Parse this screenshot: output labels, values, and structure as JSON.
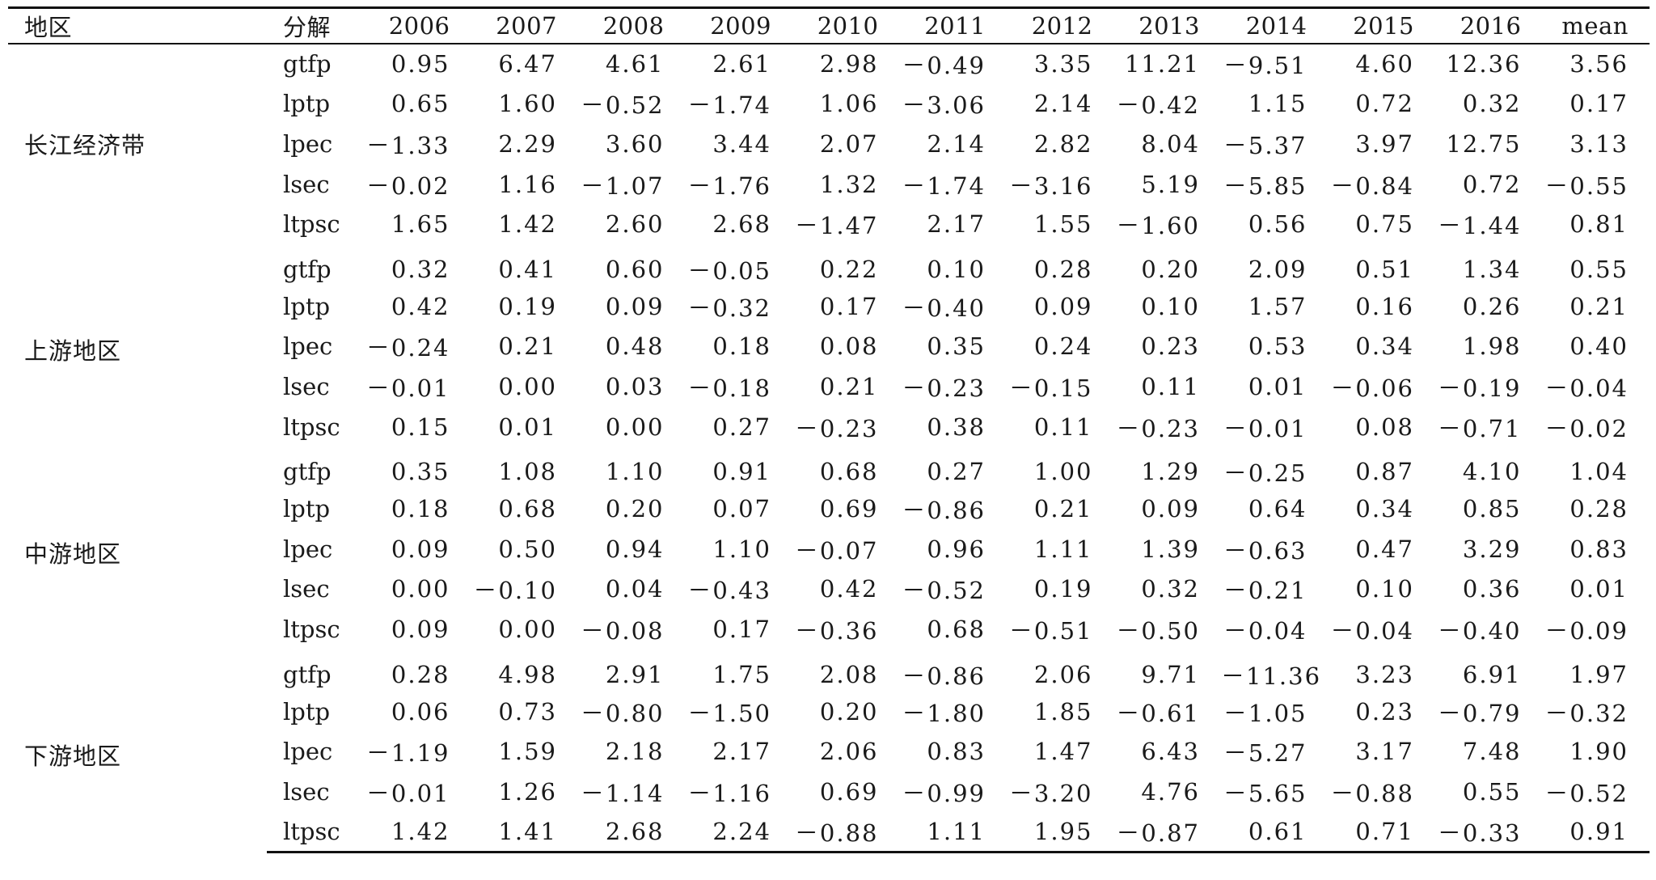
{
  "headers": [
    "地区",
    "分解",
    "2006",
    "2007",
    "2008",
    "2009",
    "2010",
    "2011",
    "2012",
    "2013",
    "2014",
    "2015",
    "2016",
    "mean"
  ],
  "groups": [
    {
      "region": "长江经济带",
      "rows": [
        {
          "d": "gtfp",
          "v": [
            "0.95",
            "6.47",
            "4.61",
            "2.61",
            "2.98",
            "－0.49",
            "3.35",
            "11.21",
            "－9.51",
            "4.60",
            "12.36",
            "3.56"
          ]
        },
        {
          "d": "lptp",
          "v": [
            "0.65",
            "1.60",
            "－0.52",
            "－1.74",
            "1.06",
            "－3.06",
            "2.14",
            "－0.42",
            "1.15",
            "0.72",
            "0.32",
            "0.17"
          ]
        },
        {
          "d": "lpec",
          "v": [
            "－1.33",
            "2.29",
            "3.60",
            "3.44",
            "2.07",
            "2.14",
            "2.82",
            "8.04",
            "－5.37",
            "3.97",
            "12.75",
            "3.13"
          ]
        },
        {
          "d": "lsec",
          "v": [
            "－0.02",
            "1.16",
            "－1.07",
            "－1.76",
            "1.32",
            "－1.74",
            "－3.16",
            "5.19",
            "－5.85",
            "－0.84",
            "0.72",
            "－0.55"
          ]
        },
        {
          "d": "ltpsc",
          "v": [
            "1.65",
            "1.42",
            "2.60",
            "2.68",
            "－1.47",
            "2.17",
            "1.55",
            "－1.60",
            "0.56",
            "0.75",
            "－1.44",
            "0.81"
          ]
        }
      ]
    },
    {
      "region": "上游地区",
      "rows": [
        {
          "d": "gtfp",
          "v": [
            "0.32",
            "0.41",
            "0.60",
            "－0.05",
            "0.22",
            "0.10",
            "0.28",
            "0.20",
            "2.09",
            "0.51",
            "1.34",
            "0.55"
          ]
        },
        {
          "d": "lptp",
          "v": [
            "0.42",
            "0.19",
            "0.09",
            "－0.32",
            "0.17",
            "－0.40",
            "0.09",
            "0.10",
            "1.57",
            "0.16",
            "0.26",
            "0.21"
          ]
        },
        {
          "d": "lpec",
          "v": [
            "－0.24",
            "0.21",
            "0.48",
            "0.18",
            "0.08",
            "0.35",
            "0.24",
            "0.23",
            "0.53",
            "0.34",
            "1.98",
            "0.40"
          ]
        },
        {
          "d": "lsec",
          "v": [
            "－0.01",
            "0.00",
            "0.03",
            "－0.18",
            "0.21",
            "－0.23",
            "－0.15",
            "0.11",
            "0.01",
            "－0.06",
            "－0.19",
            "－0.04"
          ]
        },
        {
          "d": "ltpsc",
          "v": [
            "0.15",
            "0.01",
            "0.00",
            "0.27",
            "－0.23",
            "0.38",
            "0.11",
            "－0.23",
            "－0.01",
            "0.08",
            "－0.71",
            "－0.02"
          ]
        }
      ]
    },
    {
      "region": "中游地区",
      "rows": [
        {
          "d": "gtfp",
          "v": [
            "0.35",
            "1.08",
            "1.10",
            "0.91",
            "0.68",
            "0.27",
            "1.00",
            "1.29",
            "－0.25",
            "0.87",
            "4.10",
            "1.04"
          ]
        },
        {
          "d": "lptp",
          "v": [
            "0.18",
            "0.68",
            "0.20",
            "0.07",
            "0.69",
            "－0.86",
            "0.21",
            "0.09",
            "0.64",
            "0.34",
            "0.85",
            "0.28"
          ]
        },
        {
          "d": "lpec",
          "v": [
            "0.09",
            "0.50",
            "0.94",
            "1.10",
            "－0.07",
            "0.96",
            "1.11",
            "1.39",
            "－0.63",
            "0.47",
            "3.29",
            "0.83"
          ]
        },
        {
          "d": "lsec",
          "v": [
            "0.00",
            "－0.10",
            "0.04",
            "－0.43",
            "0.42",
            "－0.52",
            "0.19",
            "0.32",
            "－0.21",
            "0.10",
            "0.36",
            "0.01"
          ]
        },
        {
          "d": "ltpsc",
          "v": [
            "0.09",
            "0.00",
            "－0.08",
            "0.17",
            "－0.36",
            "0.68",
            "－0.51",
            "－0.50",
            "－0.04",
            "－0.04",
            "－0.40",
            "－0.09"
          ]
        }
      ]
    },
    {
      "region": "下游地区",
      "rows": [
        {
          "d": "gtfp",
          "v": [
            "0.28",
            "4.98",
            "2.91",
            "1.75",
            "2.08",
            "－0.86",
            "2.06",
            "9.71",
            "－11.36",
            "3.23",
            "6.91",
            "1.97"
          ]
        },
        {
          "d": "lptp",
          "v": [
            "0.06",
            "0.73",
            "－0.80",
            "－1.50",
            "0.20",
            "－1.80",
            "1.85",
            "－0.61",
            "－1.05",
            "0.23",
            "－0.79",
            "－0.32"
          ]
        },
        {
          "d": "lpec",
          "v": [
            "－1.19",
            "1.59",
            "2.18",
            "2.17",
            "2.06",
            "0.83",
            "1.47",
            "6.43",
            "－5.27",
            "3.17",
            "7.48",
            "1.90"
          ]
        },
        {
          "d": "lsec",
          "v": [
            "－0.01",
            "1.26",
            "－1.14",
            "－1.16",
            "0.69",
            "－0.99",
            "－3.20",
            "4.76",
            "－5.65",
            "－0.88",
            "0.55",
            "－0.52"
          ]
        },
        {
          "d": "ltpsc",
          "v": [
            "1.42",
            "1.41",
            "2.68",
            "2.24",
            "－0.88",
            "1.11",
            "1.95",
            "－0.87",
            "0.61",
            "0.71",
            "－0.33",
            "0.91"
          ]
        }
      ]
    }
  ]
}
